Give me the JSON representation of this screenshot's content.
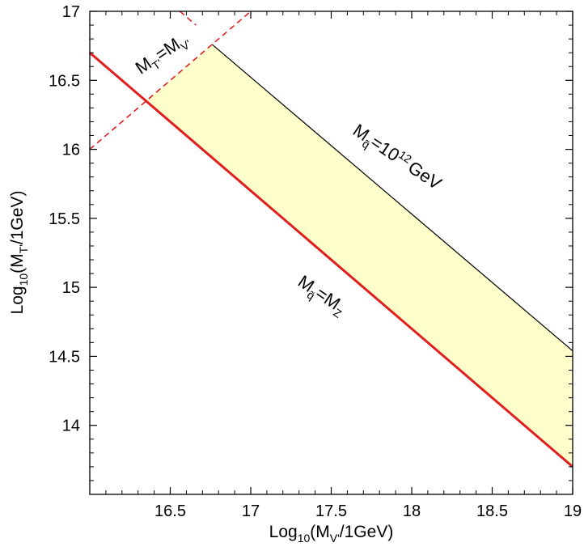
{
  "chart_data": {
    "type": "area",
    "title": "",
    "xlabel": {
      "main": "Log",
      "sub": "10",
      "open": "(M",
      "var_sub": "V'",
      "rest": "/1GeV)"
    },
    "ylabel": {
      "main": "Log",
      "sub": "10",
      "open": "(M",
      "var_sub": "T'",
      "rest": "/1GeV)"
    },
    "xlim": [
      16.0,
      19.0
    ],
    "ylim": [
      13.5,
      17.0
    ],
    "xticks": [
      "16.5",
      "17",
      "17.5",
      "18",
      "18.5",
      "19"
    ],
    "xtick_values": [
      16.5,
      17.0,
      17.5,
      18.0,
      18.5,
      19.0
    ],
    "yticks": [
      "14",
      "14.5",
      "15",
      "15.5",
      "16",
      "16.5",
      "17"
    ],
    "ytick_values": [
      14.0,
      14.5,
      15.0,
      15.5,
      16.0,
      16.5,
      17.0
    ],
    "grid": false,
    "series": [
      {
        "id": "mq_mz",
        "x": [
          16.0,
          19.0
        ],
        "y": [
          16.7,
          13.7
        ],
        "color": "#e01e1e",
        "style": "solid-thick"
      },
      {
        "id": "mq_1e12",
        "x": [
          16.76,
          19.0
        ],
        "y": [
          16.76,
          14.54
        ],
        "color": "#000000",
        "style": "solid-thin"
      },
      {
        "id": "mt_mv",
        "x": [
          16.0,
          17.0
        ],
        "y": [
          16.0,
          17.0
        ],
        "color": "#e01e1e",
        "style": "dashed"
      },
      {
        "id": "upper_dashed",
        "x": [
          16.56,
          16.66
        ],
        "y": [
          17.0,
          16.9
        ],
        "color": "#e01e1e",
        "style": "dashed"
      }
    ],
    "region": {
      "fill": "#ffffcc",
      "x": [
        16.35,
        16.76,
        19.0,
        19.0
      ],
      "y": [
        16.35,
        16.76,
        14.54,
        13.7
      ]
    },
    "annotations": [
      {
        "id": "mq_mz_label",
        "main": "M",
        "sub": "q̃",
        "eq": "=M",
        "sub2": "Z",
        "sup": "",
        "rest": ""
      },
      {
        "id": "mq_1e12_label",
        "main": "M",
        "sub": "q̃",
        "eq": "=10",
        "sub2": "",
        "sup": "12",
        "rest": "GeV"
      },
      {
        "id": "mt_mv_label",
        "main": "M",
        "sub": "T'",
        "eq": "=M",
        "sub2": "V'",
        "sup": "",
        "rest": ""
      }
    ]
  }
}
